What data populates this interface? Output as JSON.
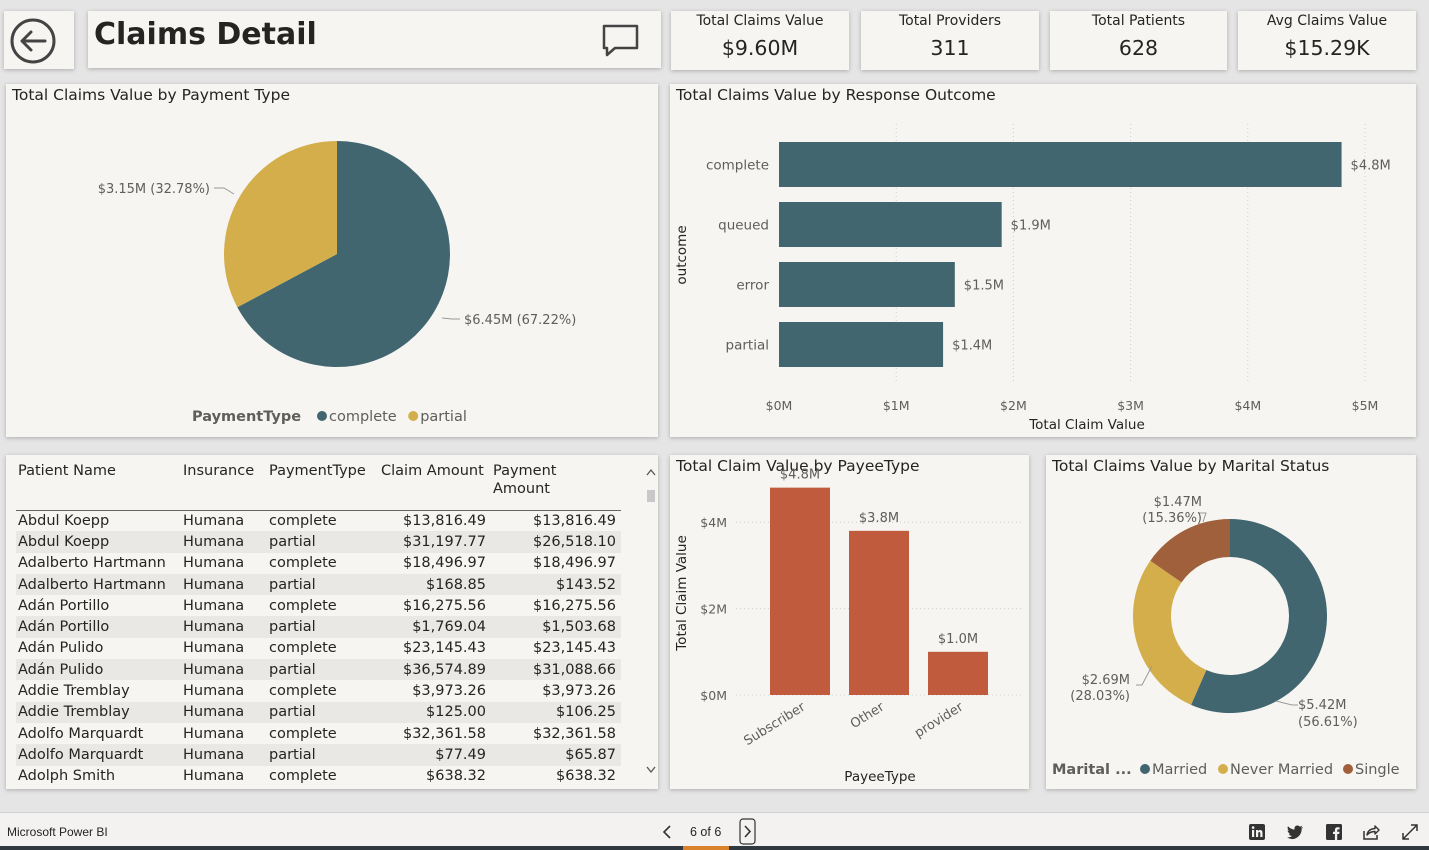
{
  "page": {
    "title": "Claims Detail",
    "footer_brand": "Microsoft Power BI",
    "page_indicator": "6 of 6"
  },
  "kpis": [
    {
      "label": "Total Claims Value",
      "value": "$9.60M"
    },
    {
      "label": "Total Providers",
      "value": "311"
    },
    {
      "label": "Total Patients",
      "value": "628"
    },
    {
      "label": "Avg Claims Value",
      "value": "$15.29K"
    }
  ],
  "colors": {
    "teal": "#41666f",
    "gold": "#d4ae4b",
    "orange": "#c05c3d",
    "brown": "#a0603b",
    "card_bg": "#f6f5f2"
  },
  "visuals": {
    "payment_pie_title": "Total Claims Value by Payment Type",
    "response_bar_title": "Total Claims Value by Response Outcome",
    "payee_bar_title": "Total Claim Value by PayeeType",
    "marital_donut_title": "Total Claims Value by Marital Status"
  },
  "chart_data": [
    {
      "type": "pie",
      "title": "Total Claims Value by Payment Type",
      "legend_title": "PaymentType",
      "slices": [
        {
          "name": "complete",
          "value": 6.45,
          "label": "$6.45M (67.22%)",
          "color": "#41666f"
        },
        {
          "name": "partial",
          "value": 3.15,
          "label": "$3.15M (32.78%)",
          "color": "#d4ae4b"
        }
      ]
    },
    {
      "type": "bar",
      "orientation": "horizontal",
      "title": "Total Claims Value by Response Outcome",
      "ylabel": "outcome",
      "xlabel": "Total Claim Value",
      "categories": [
        "complete",
        "queued",
        "error",
        "partial"
      ],
      "values": [
        4.8,
        1.9,
        1.5,
        1.4
      ],
      "data_labels": [
        "$4.8M",
        "$1.9M",
        "$1.5M",
        "$1.4M"
      ],
      "xlim": [
        0,
        5
      ],
      "x_ticks": [
        "$0M",
        "$1M",
        "$2M",
        "$3M",
        "$4M",
        "$5M"
      ],
      "color": "#41666f"
    },
    {
      "type": "bar",
      "title": "Total Claim Value by PayeeType",
      "xlabel": "PayeeType",
      "ylabel": "Total Claim Value",
      "categories": [
        "Subscriber",
        "Other",
        "provider"
      ],
      "values": [
        4.8,
        3.8,
        1.0
      ],
      "data_labels": [
        "$4.8M",
        "$3.8M",
        "$1.0M"
      ],
      "ylim": [
        0,
        5
      ],
      "y_ticks": [
        "$0M",
        "$2M",
        "$4M"
      ],
      "color": "#c05c3d"
    },
    {
      "type": "pie",
      "variant": "donut",
      "title": "Total Claims Value by Marital Status",
      "legend_title": "Marital ...",
      "slices": [
        {
          "name": "Married",
          "value": 5.42,
          "label_value": "$5.42M",
          "label_pct": "(56.61%)",
          "color": "#41666f"
        },
        {
          "name": "Never Married",
          "value": 2.69,
          "label_value": "$2.69M",
          "label_pct": "(28.03%)",
          "color": "#d4ae4b"
        },
        {
          "name": "Single",
          "value": 1.47,
          "label_value": "$1.47M",
          "label_pct": "(15.36%)",
          "color": "#a0603b"
        }
      ]
    }
  ],
  "table": {
    "columns": [
      "Patient Name",
      "Insurance",
      "PaymentType",
      "Claim Amount",
      "Payment Amount"
    ],
    "rows": [
      [
        "Abdul Koepp",
        "Humana",
        "complete",
        "$13,816.49",
        "$13,816.49"
      ],
      [
        "Abdul Koepp",
        "Humana",
        "partial",
        "$31,197.77",
        "$26,518.10"
      ],
      [
        "Adalberto Hartmann",
        "Humana",
        "complete",
        "$18,496.97",
        "$18,496.97"
      ],
      [
        "Adalberto Hartmann",
        "Humana",
        "partial",
        "$168.85",
        "$143.52"
      ],
      [
        "Adán Portillo",
        "Humana",
        "complete",
        "$16,275.56",
        "$16,275.56"
      ],
      [
        "Adán Portillo",
        "Humana",
        "partial",
        "$1,769.04",
        "$1,503.68"
      ],
      [
        "Adán Pulido",
        "Humana",
        "complete",
        "$23,145.43",
        "$23,145.43"
      ],
      [
        "Adán Pulido",
        "Humana",
        "partial",
        "$36,574.89",
        "$31,088.66"
      ],
      [
        "Addie Tremblay",
        "Humana",
        "complete",
        "$3,973.26",
        "$3,973.26"
      ],
      [
        "Addie Tremblay",
        "Humana",
        "partial",
        "$125.00",
        "$106.25"
      ],
      [
        "Adolfo Marquardt",
        "Humana",
        "complete",
        "$32,361.58",
        "$32,361.58"
      ],
      [
        "Adolfo Marquardt",
        "Humana",
        "partial",
        "$77.49",
        "$65.87"
      ],
      [
        "Adolph Smith",
        "Humana",
        "complete",
        "$638.32",
        "$638.32"
      ]
    ]
  }
}
